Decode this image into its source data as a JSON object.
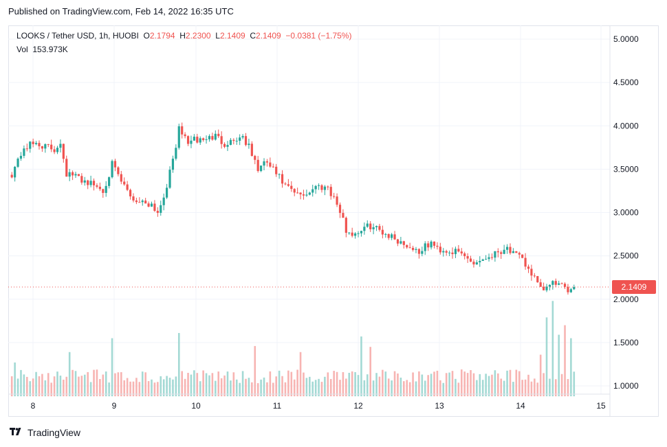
{
  "header": {
    "published": "Published on TradingView.com, Feb 14, 2022 16:35 UTC"
  },
  "legend": {
    "symbol": "LOOKS / Tether USD, 1h, HUOBI",
    "o_label": "O",
    "o_value": "2.1794",
    "h_label": "H",
    "h_value": "2.2300",
    "l_label": "L",
    "l_value": "2.1409",
    "c_label": "C",
    "c_value": "2.1409",
    "change": "−0.0381 (−1.75%)",
    "vol_label": "Vol",
    "vol_value": "153.973K"
  },
  "last_price": "2.1409",
  "colors": {
    "up": "#26a69a",
    "down": "#ef5350",
    "grid": "#f0f3fa",
    "text": "#131722"
  },
  "footer": {
    "logo_icon": "tradingview-logo-icon",
    "brand": "TradingView"
  },
  "chart_data": {
    "type": "candlestick",
    "title": "LOOKS / Tether USD, 1h, HUOBI",
    "y_ticks": [
      "5.0000",
      "4.5000",
      "4.0000",
      "3.5000",
      "3.0000",
      "2.5000",
      "2.0000",
      "1.5000",
      "1.0000"
    ],
    "ylim": [
      1.0,
      5.0
    ],
    "x_ticks": [
      "8",
      "9",
      "10",
      "11",
      "12",
      "13",
      "14",
      "15"
    ],
    "last_price": 2.1409,
    "price_anchors": [
      [
        0,
        3.45
      ],
      [
        4,
        3.75
      ],
      [
        8,
        3.8
      ],
      [
        14,
        3.72
      ],
      [
        16,
        3.82
      ],
      [
        18,
        3.45
      ],
      [
        22,
        3.4
      ],
      [
        28,
        3.3
      ],
      [
        30,
        3.25
      ],
      [
        33,
        3.55
      ],
      [
        36,
        3.35
      ],
      [
        40,
        3.15
      ],
      [
        46,
        3.1
      ],
      [
        48,
        3.0
      ],
      [
        50,
        3.2
      ],
      [
        52,
        3.45
      ],
      [
        55,
        3.95
      ],
      [
        58,
        3.82
      ],
      [
        64,
        3.85
      ],
      [
        67,
        3.88
      ],
      [
        70,
        3.8
      ],
      [
        74,
        3.85
      ],
      [
        76,
        3.88
      ],
      [
        78,
        3.75
      ],
      [
        81,
        3.5
      ],
      [
        84,
        3.58
      ],
      [
        88,
        3.4
      ],
      [
        90,
        3.3
      ],
      [
        94,
        3.2
      ],
      [
        97,
        3.22
      ],
      [
        100,
        3.3
      ],
      [
        104,
        3.3
      ],
      [
        107,
        3.1
      ],
      [
        110,
        2.8
      ],
      [
        112,
        2.75
      ],
      [
        118,
        2.85
      ],
      [
        122,
        2.78
      ],
      [
        126,
        2.7
      ],
      [
        130,
        2.62
      ],
      [
        134,
        2.55
      ],
      [
        138,
        2.65
      ],
      [
        140,
        2.58
      ],
      [
        145,
        2.55
      ],
      [
        148,
        2.52
      ],
      [
        152,
        2.42
      ],
      [
        156,
        2.48
      ],
      [
        160,
        2.55
      ],
      [
        163,
        2.6
      ],
      [
        165,
        2.52
      ],
      [
        168,
        2.45
      ],
      [
        171,
        2.3
      ],
      [
        174,
        2.1
      ],
      [
        177,
        2.15
      ],
      [
        179,
        2.2
      ],
      [
        182,
        2.1
      ],
      [
        185,
        2.14
      ]
    ],
    "volume": {
      "baseline": 1.0,
      "spikes": [
        [
          1,
          1.27
        ],
        [
          19,
          1.39
        ],
        [
          33,
          1.55
        ],
        [
          55,
          1.61
        ],
        [
          80,
          1.46
        ],
        [
          95,
          1.39
        ],
        [
          115,
          1.57
        ],
        [
          118,
          1.45
        ],
        [
          174,
          1.36
        ],
        [
          176,
          1.79
        ],
        [
          178,
          1.98
        ],
        [
          180,
          1.59
        ],
        [
          182,
          1.7
        ],
        [
          184,
          1.55
        ]
      ]
    }
  }
}
